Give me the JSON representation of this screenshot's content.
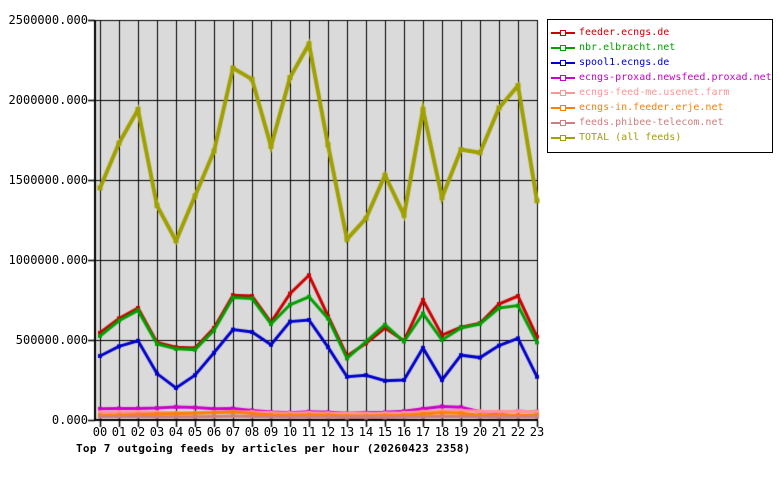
{
  "chart_data": {
    "type": "line",
    "title": "Top 7 outgoing feeds by articles per hour (20260423 2358)",
    "x_categories": [
      "00",
      "01",
      "02",
      "03",
      "04",
      "05",
      "06",
      "07",
      "08",
      "09",
      "10",
      "11",
      "12",
      "13",
      "14",
      "15",
      "16",
      "17",
      "18",
      "19",
      "20",
      "21",
      "22",
      "23"
    ],
    "y_axis": {
      "min": 0,
      "max": 2500000,
      "ticks": [
        {
          "value": 0,
          "label": "0.000"
        },
        {
          "value": 500000,
          "label": "500000.000"
        },
        {
          "value": 1000000,
          "label": "1000000.000"
        },
        {
          "value": 1500000,
          "label": "1500000.000"
        },
        {
          "value": 2000000,
          "label": "2000000.000"
        },
        {
          "value": 2500000,
          "label": "2500000.000"
        }
      ]
    },
    "grid": true,
    "legend_position": "top-right",
    "plot_bg_color": "#dadada",
    "grid_color": "#000000",
    "axis_color": "#000000",
    "series": [
      {
        "name": "feeder.ecngs.de",
        "color": "#cc0000",
        "line_width": 3,
        "values": [
          545000,
          635000,
          700000,
          485000,
          455000,
          450000,
          575000,
          780000,
          775000,
          610000,
          790000,
          905000,
          650000,
          400000,
          480000,
          575000,
          495000,
          750000,
          530000,
          580000,
          605000,
          725000,
          775000,
          520000
        ]
      },
      {
        "name": "nbr.elbracht.net",
        "color": "#00a000",
        "line_width": 3,
        "values": [
          525000,
          620000,
          685000,
          475000,
          445000,
          440000,
          560000,
          765000,
          760000,
          600000,
          720000,
          770000,
          635000,
          385000,
          490000,
          595000,
          490000,
          665000,
          500000,
          575000,
          600000,
          700000,
          715000,
          485000
        ]
      },
      {
        "name": "spool1.ecngs.de",
        "color": "#0000cc",
        "line_width": 3,
        "values": [
          400000,
          460000,
          495000,
          290000,
          200000,
          280000,
          420000,
          565000,
          550000,
          470000,
          615000,
          625000,
          455000,
          270000,
          280000,
          245000,
          250000,
          450000,
          250000,
          405000,
          390000,
          465000,
          510000,
          270000
        ]
      },
      {
        "name": "ecngs-proxad.newsfeed.proxad.net",
        "color": "#cc00cc",
        "line_width": 3,
        "values": [
          70000,
          72000,
          72000,
          75000,
          82000,
          78000,
          70000,
          72000,
          60000,
          50000,
          46000,
          52000,
          48000,
          42000,
          45000,
          48000,
          55000,
          70000,
          85000,
          80000,
          52000,
          48000,
          55000,
          52000
        ]
      },
      {
        "name": "ecngs-feed-me.usenet.farm",
        "color": "#ff9696",
        "line_width": 3,
        "values": [
          48000,
          50000,
          50000,
          48000,
          45000,
          45000,
          48000,
          52000,
          50000,
          45000,
          42000,
          45000,
          42000,
          40000,
          40000,
          42000,
          45000,
          52000,
          58000,
          60000,
          55000,
          52000,
          55000,
          52000
        ]
      },
      {
        "name": "ecngs-in.feeder.erje.net",
        "color": "#ff8000",
        "line_width": 3,
        "values": [
          30000,
          32000,
          35000,
          38000,
          40000,
          42000,
          45000,
          50000,
          40000,
          32000,
          30000,
          32000,
          30000,
          25000,
          25000,
          28000,
          30000,
          38000,
          45000,
          42000,
          30000,
          28000,
          30000,
          32000
        ]
      },
      {
        "name": "feeds.phibee-telecom.net",
        "color": "#cd8080",
        "line_width": 3,
        "values": [
          22000,
          22000,
          22000,
          20000,
          20000,
          20000,
          22000,
          25000,
          22000,
          20000,
          18000,
          20000,
          18000,
          15000,
          15000,
          16000,
          18000,
          20000,
          22000,
          22000,
          20000,
          18000,
          20000,
          20000
        ]
      },
      {
        "name": "TOTAL (all feeds)",
        "color": "#a0a000",
        "line_width": 4,
        "values": [
          1450000,
          1730000,
          1940000,
          1340000,
          1120000,
          1400000,
          1680000,
          2200000,
          2130000,
          1710000,
          2140000,
          2350000,
          1720000,
          1130000,
          1260000,
          1530000,
          1280000,
          1940000,
          1390000,
          1690000,
          1670000,
          1950000,
          2090000,
          1370000
        ]
      }
    ]
  }
}
